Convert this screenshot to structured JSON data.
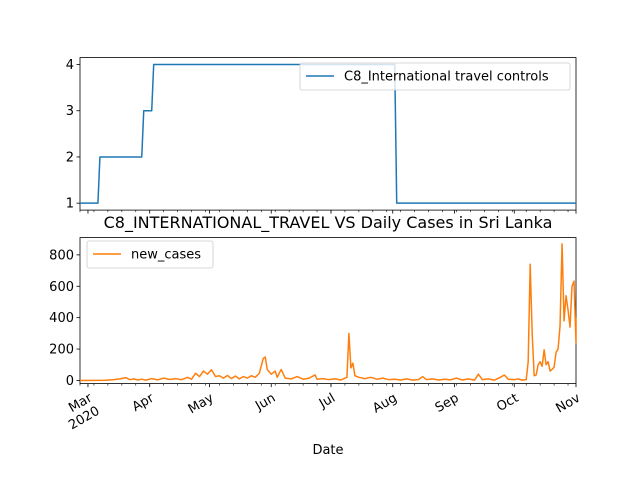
{
  "chart_data": [
    {
      "type": "line",
      "title": "",
      "xlabel": "",
      "ylabel": "",
      "ylim": [
        0.85,
        4.15
      ],
      "yticks": [
        1,
        2,
        3,
        4
      ],
      "x_range": [
        "2020-02-26",
        "2020-11-01"
      ],
      "grid": false,
      "legend_position": "top-right",
      "series": [
        {
          "name": "C8_International travel controls",
          "color": "#1f77b4",
          "step": true,
          "points": [
            [
              "2020-02-26",
              1
            ],
            [
              "2020-03-06",
              1
            ],
            [
              "2020-03-07",
              2
            ],
            [
              "2020-03-28",
              2
            ],
            [
              "2020-03-29",
              3
            ],
            [
              "2020-04-02",
              3
            ],
            [
              "2020-04-03",
              4
            ],
            [
              "2020-08-02",
              4
            ],
            [
              "2020-08-03",
              1
            ],
            [
              "2020-11-01",
              1
            ]
          ]
        }
      ]
    },
    {
      "type": "line",
      "title": "C8_INTERNATIONAL_TRAVEL VS Daily Cases in Sri Lanka",
      "xlabel": "Date",
      "ylabel": "",
      "ylim": [
        -20,
        910
      ],
      "yticks": [
        0,
        200,
        400,
        600,
        800
      ],
      "x_range": [
        "2020-02-26",
        "2020-11-01"
      ],
      "xticks": [
        {
          "date": "2020-03-01",
          "label": "Mar",
          "sublabel": "2020"
        },
        {
          "date": "2020-04-01",
          "label": "Apr"
        },
        {
          "date": "2020-05-01",
          "label": "May"
        },
        {
          "date": "2020-06-01",
          "label": "Jun"
        },
        {
          "date": "2020-07-01",
          "label": "Jul"
        },
        {
          "date": "2020-08-01",
          "label": "Aug"
        },
        {
          "date": "2020-09-01",
          "label": "Sep"
        },
        {
          "date": "2020-10-01",
          "label": "Oct"
        },
        {
          "date": "2020-11-01",
          "label": "Nov"
        }
      ],
      "grid": false,
      "legend_position": "top-left",
      "series": [
        {
          "name": "new_cases",
          "color": "#ff7f0e",
          "points": [
            [
              "2020-02-26",
              0
            ],
            [
              "2020-03-10",
              1
            ],
            [
              "2020-03-14",
              5
            ],
            [
              "2020-03-17",
              10
            ],
            [
              "2020-03-20",
              18
            ],
            [
              "2020-03-22",
              5
            ],
            [
              "2020-03-24",
              10
            ],
            [
              "2020-03-26",
              3
            ],
            [
              "2020-03-28",
              8
            ],
            [
              "2020-03-30",
              2
            ],
            [
              "2020-04-02",
              12
            ],
            [
              "2020-04-05",
              4
            ],
            [
              "2020-04-08",
              15
            ],
            [
              "2020-04-11",
              6
            ],
            [
              "2020-04-14",
              12
            ],
            [
              "2020-04-17",
              5
            ],
            [
              "2020-04-20",
              20
            ],
            [
              "2020-04-22",
              8
            ],
            [
              "2020-04-24",
              46
            ],
            [
              "2020-04-26",
              25
            ],
            [
              "2020-04-28",
              60
            ],
            [
              "2020-04-30",
              40
            ],
            [
              "2020-05-02",
              68
            ],
            [
              "2020-05-04",
              25
            ],
            [
              "2020-05-06",
              30
            ],
            [
              "2020-05-08",
              15
            ],
            [
              "2020-05-10",
              32
            ],
            [
              "2020-05-12",
              12
            ],
            [
              "2020-05-14",
              28
            ],
            [
              "2020-05-16",
              10
            ],
            [
              "2020-05-18",
              25
            ],
            [
              "2020-05-20",
              15
            ],
            [
              "2020-05-22",
              30
            ],
            [
              "2020-05-24",
              20
            ],
            [
              "2020-05-26",
              45
            ],
            [
              "2020-05-28",
              140
            ],
            [
              "2020-05-29",
              150
            ],
            [
              "2020-05-30",
              70
            ],
            [
              "2020-06-01",
              40
            ],
            [
              "2020-06-03",
              60
            ],
            [
              "2020-06-04",
              20
            ],
            [
              "2020-06-06",
              70
            ],
            [
              "2020-06-08",
              15
            ],
            [
              "2020-06-11",
              10
            ],
            [
              "2020-06-14",
              25
            ],
            [
              "2020-06-17",
              8
            ],
            [
              "2020-06-20",
              15
            ],
            [
              "2020-06-23",
              35
            ],
            [
              "2020-06-24",
              8
            ],
            [
              "2020-06-27",
              12
            ],
            [
              "2020-06-30",
              5
            ],
            [
              "2020-07-03",
              10
            ],
            [
              "2020-07-06",
              3
            ],
            [
              "2020-07-09",
              20
            ],
            [
              "2020-07-10",
              300
            ],
            [
              "2020-07-11",
              80
            ],
            [
              "2020-07-12",
              110
            ],
            [
              "2020-07-13",
              30
            ],
            [
              "2020-07-15",
              20
            ],
            [
              "2020-07-18",
              12
            ],
            [
              "2020-07-21",
              20
            ],
            [
              "2020-07-24",
              8
            ],
            [
              "2020-07-27",
              15
            ],
            [
              "2020-07-30",
              5
            ],
            [
              "2020-08-02",
              8
            ],
            [
              "2020-08-05",
              3
            ],
            [
              "2020-08-08",
              10
            ],
            [
              "2020-08-11",
              2
            ],
            [
              "2020-08-14",
              6
            ],
            [
              "2020-08-16",
              25
            ],
            [
              "2020-08-18",
              5
            ],
            [
              "2020-08-21",
              10
            ],
            [
              "2020-08-24",
              3
            ],
            [
              "2020-08-27",
              8
            ],
            [
              "2020-08-30",
              4
            ],
            [
              "2020-09-02",
              15
            ],
            [
              "2020-09-05",
              3
            ],
            [
              "2020-09-08",
              10
            ],
            [
              "2020-09-11",
              2
            ],
            [
              "2020-09-13",
              40
            ],
            [
              "2020-09-15",
              5
            ],
            [
              "2020-09-18",
              10
            ],
            [
              "2020-09-21",
              2
            ],
            [
              "2020-09-24",
              20
            ],
            [
              "2020-09-26",
              35
            ],
            [
              "2020-09-28",
              8
            ],
            [
              "2020-10-01",
              5
            ],
            [
              "2020-10-03",
              10
            ],
            [
              "2020-10-05",
              2
            ],
            [
              "2020-10-07",
              5
            ],
            [
              "2020-10-08",
              120
            ],
            [
              "2020-10-09",
              740
            ],
            [
              "2020-10-10",
              300
            ],
            [
              "2020-10-11",
              30
            ],
            [
              "2020-10-12",
              35
            ],
            [
              "2020-10-13",
              100
            ],
            [
              "2020-10-14",
              120
            ],
            [
              "2020-10-15",
              90
            ],
            [
              "2020-10-16",
              195
            ],
            [
              "2020-10-17",
              100
            ],
            [
              "2020-10-18",
              120
            ],
            [
              "2020-10-19",
              60
            ],
            [
              "2020-10-20",
              70
            ],
            [
              "2020-10-21",
              85
            ],
            [
              "2020-10-22",
              180
            ],
            [
              "2020-10-23",
              200
            ],
            [
              "2020-10-24",
              350
            ],
            [
              "2020-10-25",
              870
            ],
            [
              "2020-10-26",
              380
            ],
            [
              "2020-10-27",
              540
            ],
            [
              "2020-10-28",
              450
            ],
            [
              "2020-10-29",
              340
            ],
            [
              "2020-10-30",
              600
            ],
            [
              "2020-10-31",
              633
            ],
            [
              "2020-11-01",
              240
            ],
            [
              "2020-11-01",
              400
            ]
          ]
        }
      ]
    }
  ]
}
